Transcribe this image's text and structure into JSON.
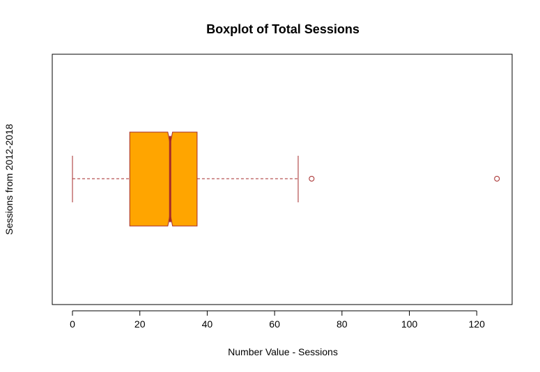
{
  "chart_data": {
    "type": "boxplot",
    "orientation": "horizontal",
    "notched": true,
    "title": "Boxplot of Total Sessions",
    "xlabel": "Number Value - Sessions",
    "ylabel": "Sessions from 2012-2018",
    "xlim": [
      -5,
      131
    ],
    "xticks": [
      0,
      20,
      40,
      60,
      80,
      100,
      120
    ],
    "box": {
      "whisker_low": 0,
      "q1": 17,
      "median": 29,
      "q3": 37,
      "whisker_high": 67,
      "notch_low": 28.3,
      "notch_high": 29.7,
      "outliers": [
        71,
        126
      ]
    },
    "colors": {
      "box_fill": "#FFA500",
      "box_border": "#A52A2A",
      "median": "#A52A2A",
      "whisker": "#A52A2A",
      "outlier": "#A52A2A"
    }
  }
}
